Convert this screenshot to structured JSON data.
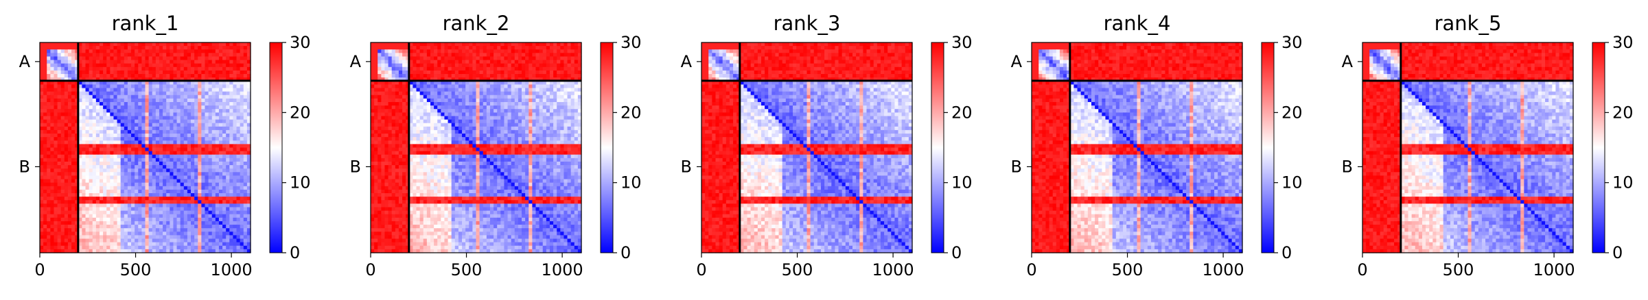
{
  "chart_data": [
    {
      "type": "heatmap",
      "title": "rank_1",
      "x_ticks": [
        0,
        500,
        1000
      ],
      "y_tick_labels": [
        "A",
        "B"
      ],
      "chain_boundary": 200,
      "length": 1100,
      "colorbar": {
        "min": 0,
        "max": 30,
        "ticks": [
          0,
          10,
          20,
          30
        ]
      },
      "colormap": "bwr"
    },
    {
      "type": "heatmap",
      "title": "rank_2",
      "x_ticks": [
        0,
        500,
        1000
      ],
      "y_tick_labels": [
        "A",
        "B"
      ],
      "chain_boundary": 200,
      "length": 1100,
      "colorbar": {
        "min": 0,
        "max": 30,
        "ticks": [
          0,
          10,
          20,
          30
        ]
      },
      "colormap": "bwr"
    },
    {
      "type": "heatmap",
      "title": "rank_3",
      "x_ticks": [
        0,
        500,
        1000
      ],
      "y_tick_labels": [
        "A",
        "B"
      ],
      "chain_boundary": 200,
      "length": 1100,
      "colorbar": {
        "min": 0,
        "max": 30,
        "ticks": [
          0,
          10,
          20,
          30
        ]
      },
      "colormap": "bwr"
    },
    {
      "type": "heatmap",
      "title": "rank_4",
      "x_ticks": [
        0,
        500,
        1000
      ],
      "y_tick_labels": [
        "A",
        "B"
      ],
      "chain_boundary": 200,
      "length": 1100,
      "colorbar": {
        "min": 0,
        "max": 30,
        "ticks": [
          0,
          10,
          20,
          30
        ]
      },
      "colormap": "bwr"
    },
    {
      "type": "heatmap",
      "title": "rank_5",
      "x_ticks": [
        0,
        500,
        1000
      ],
      "y_tick_labels": [
        "A",
        "B"
      ],
      "chain_boundary": 200,
      "length": 1100,
      "colorbar": {
        "min": 0,
        "max": 30,
        "ticks": [
          0,
          10,
          20,
          30
        ]
      },
      "colormap": "bwr"
    }
  ],
  "colors": {
    "low": "#0000ff",
    "mid": "#ffffff",
    "high": "#ff0000",
    "separator": "#000000"
  }
}
